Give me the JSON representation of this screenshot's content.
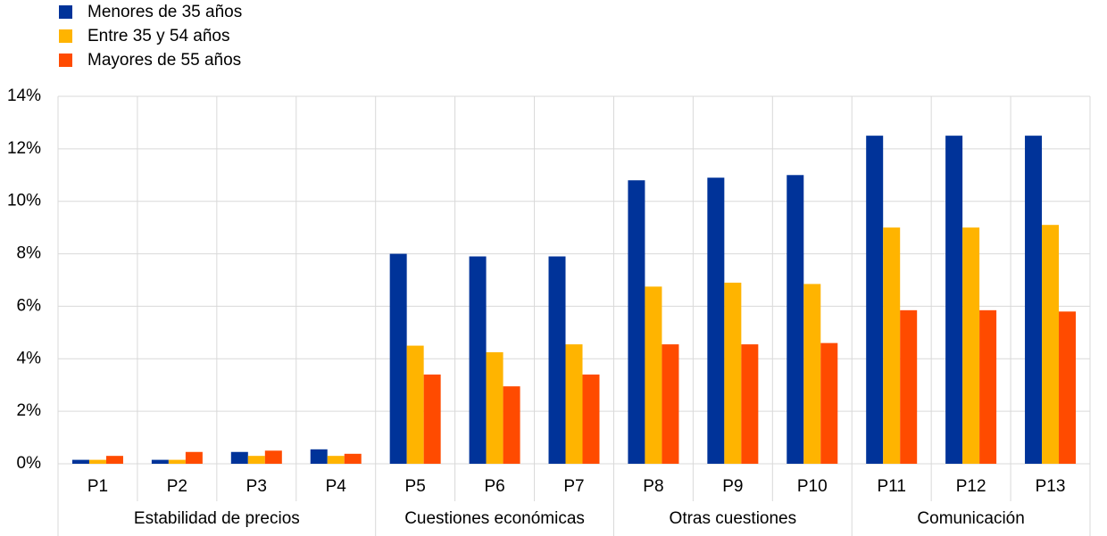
{
  "chart_data": {
    "type": "bar",
    "categories": [
      "P1",
      "P2",
      "P3",
      "P4",
      "P5",
      "P6",
      "P7",
      "P8",
      "P9",
      "P10",
      "P11",
      "P12",
      "P13"
    ],
    "groups": [
      {
        "name": "Estabilidad de precios",
        "count": 4
      },
      {
        "name": "Cuestiones económicas",
        "count": 3
      },
      {
        "name": "Otras cuestiones",
        "count": 3
      },
      {
        "name": "Comunicación",
        "count": 3
      }
    ],
    "series": [
      {
        "name": "Menores de 35 años",
        "color": "#003399",
        "values": [
          0.15,
          0.15,
          0.45,
          0.55,
          8.0,
          7.9,
          7.9,
          10.8,
          10.9,
          11.0,
          12.5,
          12.5,
          12.5
        ]
      },
      {
        "name": "Entre 35 y 54 años",
        "color": "#ffb400",
        "values": [
          0.15,
          0.15,
          0.3,
          0.3,
          4.5,
          4.25,
          4.55,
          6.75,
          6.9,
          6.85,
          9.0,
          9.0,
          9.1
        ]
      },
      {
        "name": "Mayores de 55 años",
        "color": "#ff4b00",
        "values": [
          0.3,
          0.45,
          0.5,
          0.38,
          3.4,
          2.95,
          3.4,
          4.55,
          4.55,
          4.6,
          5.85,
          5.85,
          5.8
        ]
      }
    ],
    "ylim": [
      0,
      14
    ],
    "yticks": [
      {
        "value": 0,
        "label": "0%"
      },
      {
        "value": 2,
        "label": "2%"
      },
      {
        "value": 4,
        "label": "4%"
      },
      {
        "value": 6,
        "label": "6%"
      },
      {
        "value": 8,
        "label": "8%"
      },
      {
        "value": 10,
        "label": "10%"
      },
      {
        "value": 12,
        "label": "12%"
      },
      {
        "value": 14,
        "label": "14%"
      }
    ],
    "grid": true
  }
}
